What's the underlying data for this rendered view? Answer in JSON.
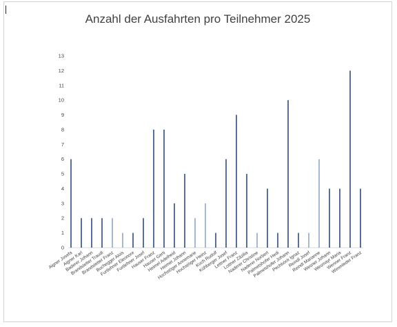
{
  "chart_data": {
    "type": "bar",
    "title": "Anzahl der Ausfahrten pro Teilnehmer 2025",
    "xlabel": "",
    "ylabel": "",
    "ylim": [
      0,
      13
    ],
    "yticks": [
      0,
      1,
      2,
      3,
      4,
      5,
      6,
      7,
      8,
      9,
      10,
      11,
      12,
      13
    ],
    "grid": false,
    "legend": "none",
    "bar_color": "#2e4a7d",
    "light_bar_color": "#8fa7c6",
    "categories": [
      "Aigner Josefa",
      "Aigner Karl",
      "Baderer Johann",
      "Brandstetter Traudl",
      "Brandstetter Franz",
      "Buchegger Alois",
      "Furtlehner Eleonore",
      "Furtlehner Josef",
      "Hauser Franz",
      "Hauser Gerti",
      "Heimel Adelheid",
      "Heimel Johann",
      "Hochstöger Annemarie",
      "Hochstöger Heinz",
      "Koch Rudolf",
      "Kühberger Josef",
      "Lettner Franz",
      "Lottner Zäzilia",
      "Naderer Christine",
      "Naderer Norbert",
      "Palmetshofer Hedi",
      "Palmetshofer Johann",
      "Pechböck Ignaz",
      "Reindl Josef",
      "Reindl Marianne",
      "Wesner Johann",
      "Wesmayr Maria",
      "Wenner Franz",
      "Wimmleder Franz"
    ],
    "values": [
      6,
      2,
      2,
      2,
      2,
      1,
      1,
      2,
      8,
      8,
      3,
      5,
      2,
      3,
      1,
      6,
      9,
      5,
      1,
      4,
      1,
      10,
      1,
      1,
      6,
      4,
      4,
      12,
      4
    ]
  }
}
